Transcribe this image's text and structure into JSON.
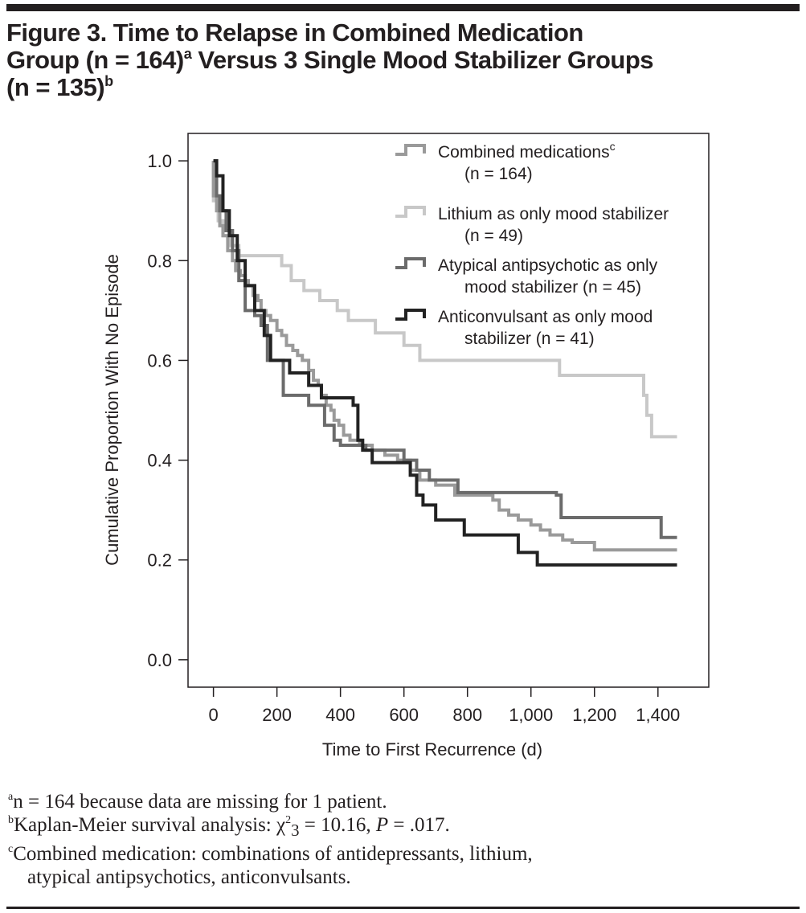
{
  "figure": {
    "title_line1": "Figure 3. Time to Relapse in Combined Medication",
    "title_line2_part1": "Group (n = 164)",
    "title_line2_sup": "a",
    "title_line2_part2": " Versus 3 Single Mood Stabilizer Groups",
    "title_line3_part1": "(n = 135)",
    "title_line3_sup": "b"
  },
  "footnotes": {
    "a_mark": "a",
    "a_text": "n = 164 because data are missing for 1 patient.",
    "b_mark": "b",
    "b_text_pre": "Kaplan-Meier survival analysis: χ",
    "b_chi_sup": "2",
    "b_chi_sub": "3",
    "b_text_post": " = 10.16, ",
    "b_p": "P",
    "b_p_val": " = .017.",
    "c_mark": "c",
    "c_text_line1": "Combined medication: combinations of antidepressants, lithium,",
    "c_text_line2": "atypical antipsychotics, anticonvulsants."
  },
  "chart_data": {
    "type": "line",
    "subtype": "kaplan-meier step",
    "title": "Time to Relapse in Combined Medication Group (n = 164) Versus 3 Single Mood Stabilizer Groups (n = 135)",
    "xlabel": "Time to First Recurrence (d)",
    "ylabel": "Cumulative Proportion With No Episode",
    "xlim": [
      -80,
      1560
    ],
    "ylim": [
      -0.055,
      1.055
    ],
    "xticks": [
      0,
      200,
      400,
      600,
      800,
      1000,
      1200,
      1400
    ],
    "xtick_labels": [
      "0",
      "200",
      "400",
      "600",
      "800",
      "1,000",
      "1,200",
      "1,400"
    ],
    "yticks": [
      0.0,
      0.2,
      0.4,
      0.6,
      0.8,
      1.0
    ],
    "ytick_labels": [
      "0.0",
      "0.2",
      "0.4",
      "0.6",
      "0.8",
      "1.0"
    ],
    "grid": false,
    "legend_position": "top-right",
    "series": [
      {
        "name": "Combined medications",
        "label_line1": "Combined medications",
        "label_sup": "c",
        "label_line2": "(n = 164)",
        "color": "#9a9a9a",
        "x": [
          0,
          10,
          20,
          30,
          45,
          60,
          70,
          85,
          100,
          110,
          125,
          140,
          150,
          165,
          180,
          200,
          215,
          230,
          250,
          265,
          280,
          300,
          315,
          330,
          340,
          355,
          370,
          380,
          395,
          410,
          430,
          460,
          500,
          540,
          580,
          620,
          650,
          700,
          760,
          830,
          880,
          900,
          930,
          960,
          1000,
          1030,
          1060,
          1100,
          1130,
          1200,
          1460
        ],
        "y": [
          0.93,
          0.9,
          0.87,
          0.85,
          0.82,
          0.8,
          0.78,
          0.77,
          0.76,
          0.75,
          0.73,
          0.72,
          0.7,
          0.69,
          0.68,
          0.66,
          0.65,
          0.63,
          0.62,
          0.61,
          0.6,
          0.58,
          0.56,
          0.55,
          0.53,
          0.51,
          0.5,
          0.48,
          0.47,
          0.45,
          0.44,
          0.43,
          0.42,
          0.41,
          0.4,
          0.38,
          0.36,
          0.35,
          0.33,
          0.33,
          0.32,
          0.3,
          0.29,
          0.28,
          0.27,
          0.26,
          0.25,
          0.24,
          0.235,
          0.22,
          0.22
        ]
      },
      {
        "name": "Lithium as only mood stabilizer",
        "label_line1": "Lithium as only mood stabilizer",
        "label_sup": "",
        "label_line2": "(n = 49)",
        "color": "#c8c8c8",
        "x": [
          0,
          15,
          30,
          50,
          80,
          215,
          245,
          285,
          335,
          390,
          425,
          510,
          600,
          650,
          1090,
          1355,
          1365,
          1380,
          1460
        ],
        "y": [
          0.92,
          0.88,
          0.85,
          0.83,
          0.81,
          0.79,
          0.76,
          0.74,
          0.72,
          0.7,
          0.68,
          0.655,
          0.63,
          0.6,
          0.57,
          0.53,
          0.49,
          0.447,
          0.447
        ]
      },
      {
        "name": "Atypical antipsychotic as only mood stabilizer",
        "label_line1": "Atypical antipsychotic as only",
        "label_sup": "",
        "label_line2": "mood stabilizer (n = 45)",
        "color": "#6b6b6b",
        "x": [
          0,
          10,
          20,
          40,
          60,
          80,
          100,
          130,
          150,
          170,
          220,
          300,
          350,
          380,
          400,
          480,
          600,
          640,
          680,
          770,
          1080,
          1095,
          1410,
          1460
        ],
        "y": [
          1.0,
          0.93,
          0.9,
          0.86,
          0.82,
          0.76,
          0.7,
          0.69,
          0.67,
          0.6,
          0.53,
          0.51,
          0.47,
          0.44,
          0.43,
          0.42,
          0.4,
          0.38,
          0.36,
          0.335,
          0.33,
          0.285,
          0.245,
          0.245
        ]
      },
      {
        "name": "Anticonvulsant as only mood stabilizer",
        "label_line1": "Anticonvulsant as only mood",
        "label_sup": "",
        "label_line2": "stabilizer (n = 41)",
        "color": "#222222",
        "x": [
          0,
          10,
          30,
          50,
          75,
          100,
          130,
          160,
          180,
          240,
          300,
          340,
          440,
          455,
          470,
          500,
          620,
          640,
          660,
          700,
          790,
          960,
          1020,
          1460
        ],
        "y": [
          1.0,
          0.97,
          0.9,
          0.85,
          0.8,
          0.75,
          0.7,
          0.65,
          0.6,
          0.575,
          0.55,
          0.525,
          0.51,
          0.44,
          0.42,
          0.395,
          0.37,
          0.33,
          0.31,
          0.28,
          0.25,
          0.215,
          0.19,
          0.19
        ]
      }
    ]
  }
}
